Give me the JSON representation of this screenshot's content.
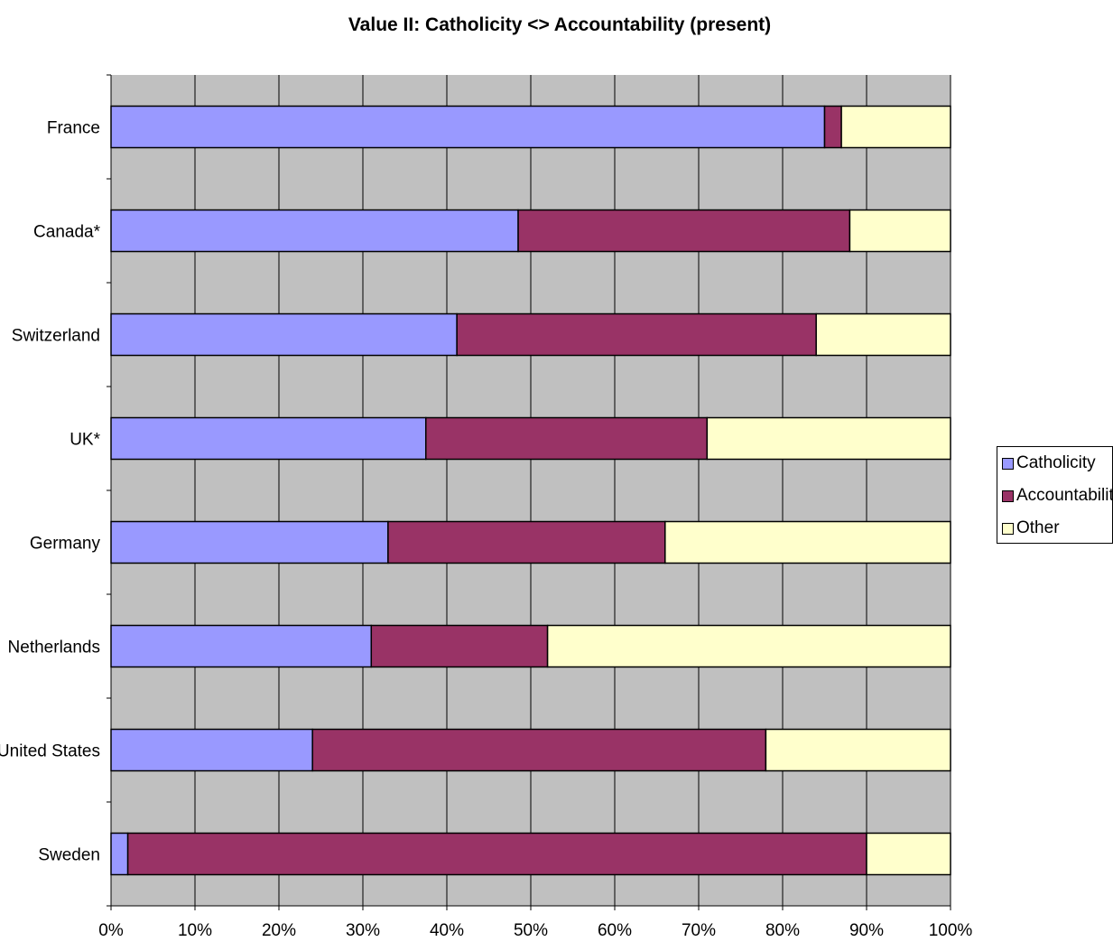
{
  "chart_data": {
    "type": "bar",
    "orientation": "horizontal",
    "stacking": "percent",
    "title": "Value II: Catholicity <> Accountability (present)",
    "xlabel": "",
    "ylabel": "",
    "categories": [
      "France",
      "Canada*",
      "Switzerland",
      "UK*",
      "Germany",
      "Netherlands",
      "United States",
      "Sweden"
    ],
    "series": [
      {
        "name": "Catholicity",
        "color": "#9999ff",
        "values": [
          85,
          48.5,
          41.2,
          37.5,
          33,
          31,
          24,
          2
        ]
      },
      {
        "name": "Accountability",
        "color": "#993366",
        "values": [
          2,
          39.5,
          42.8,
          33.5,
          33,
          21,
          54,
          88
        ]
      },
      {
        "name": "Other",
        "color": "#ffffcc",
        "values": [
          13,
          12,
          16,
          29,
          34,
          48,
          22,
          10
        ]
      }
    ],
    "x_ticks": [
      "0%",
      "10%",
      "20%",
      "30%",
      "40%",
      "50%",
      "60%",
      "70%",
      "80%",
      "90%",
      "100%"
    ],
    "xlim": [
      0,
      100
    ],
    "grid": true,
    "plot_background": "#c0c0c0",
    "legend_position": "right"
  }
}
